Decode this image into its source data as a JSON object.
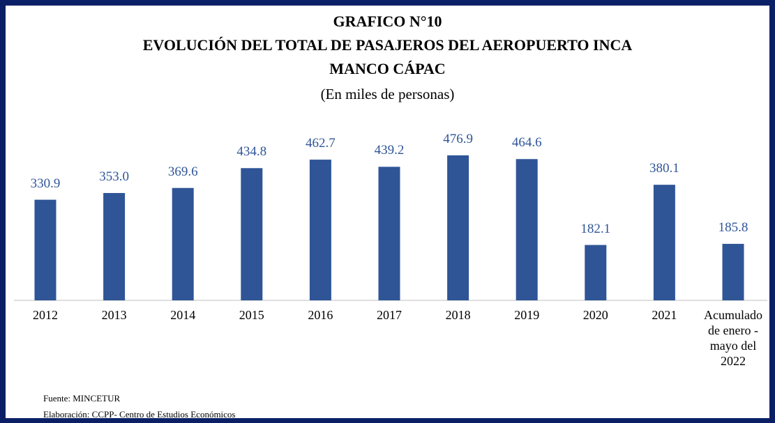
{
  "chart_data": {
    "type": "bar",
    "title": [
      "GRAFICO N°10",
      "EVOLUCIÓN DEL TOTAL DE PASAJEROS DEL AEROPUERTO INCA",
      "MANCO CÁPAC"
    ],
    "subtitle": "(En miles de personas)",
    "categories": [
      "2012",
      "2013",
      "2014",
      "2015",
      "2016",
      "2017",
      "2018",
      "2019",
      "2020",
      "2021",
      "Acumulado de enero - mayo del 2022"
    ],
    "values": [
      330.9,
      353.0,
      369.6,
      434.8,
      462.7,
      439.2,
      476.9,
      464.6,
      182.1,
      380.1,
      185.8
    ],
    "value_labels": [
      "330.9",
      "353.0",
      "369.6",
      "434.8",
      "462.7",
      "439.2",
      "476.9",
      "464.6",
      "182.1",
      "380.1",
      "185.8"
    ],
    "color": "#2f5597",
    "ylim": [
      0,
      550
    ],
    "notes": [
      "Fuente: MINCETUR",
      "Elaboración: CCPP- Centro de Estudios Económicos"
    ]
  }
}
